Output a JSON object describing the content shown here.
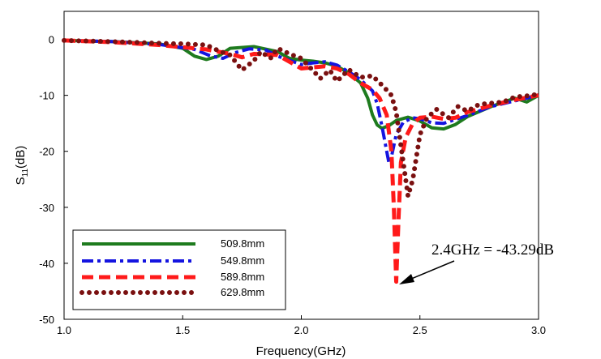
{
  "chart_data": {
    "type": "line",
    "xlabel": "Frequency(GHz)",
    "ylabel_main": "S",
    "ylabel_sub": "11",
    "ylabel_unit": "(dB)",
    "xlim": [
      1.0,
      3.0
    ],
    "ylim": [
      -50,
      5
    ],
    "xticks": [
      1.0,
      1.5,
      2.0,
      2.5,
      3.0
    ],
    "xtick_labels": [
      "1.0",
      "1.5",
      "2.0",
      "2.5",
      "3.0"
    ],
    "yticks": [
      0,
      -10,
      -20,
      -30,
      -40,
      -50
    ],
    "ytick_labels": [
      "0",
      "-10",
      "-20",
      "-30",
      "-40",
      "-50"
    ],
    "grid": false,
    "legend_position": "bottom-left",
    "annotation": {
      "text": "2.4GHz = -43.29dB",
      "x": 2.4,
      "y": -43.29
    },
    "series": [
      {
        "name": "509.8mm",
        "color": "#1e7b1e",
        "dash": "solid",
        "points": [
          [
            1.0,
            -0.2
          ],
          [
            1.2,
            -0.4
          ],
          [
            1.4,
            -0.8
          ],
          [
            1.5,
            -1.6
          ],
          [
            1.55,
            -3.0
          ],
          [
            1.6,
            -3.6
          ],
          [
            1.65,
            -3.0
          ],
          [
            1.7,
            -1.6
          ],
          [
            1.8,
            -1.3
          ],
          [
            1.9,
            -2.2
          ],
          [
            1.95,
            -3.4
          ],
          [
            2.0,
            -3.7
          ],
          [
            2.05,
            -3.9
          ],
          [
            2.1,
            -4.2
          ],
          [
            2.15,
            -4.8
          ],
          [
            2.2,
            -6.0
          ],
          [
            2.25,
            -7.8
          ],
          [
            2.28,
            -10.5
          ],
          [
            2.3,
            -13.5
          ],
          [
            2.32,
            -15.3
          ],
          [
            2.34,
            -15.9
          ],
          [
            2.37,
            -15.4
          ],
          [
            2.4,
            -14.5
          ],
          [
            2.45,
            -13.9
          ],
          [
            2.5,
            -14.6
          ],
          [
            2.55,
            -15.8
          ],
          [
            2.6,
            -16.0
          ],
          [
            2.65,
            -15.2
          ],
          [
            2.7,
            -13.8
          ],
          [
            2.8,
            -12.0
          ],
          [
            2.9,
            -10.5
          ],
          [
            2.95,
            -11.2
          ],
          [
            3.0,
            -10.0
          ]
        ]
      },
      {
        "name": "549.8mm",
        "color": "#1414e0",
        "dash": "dashdot",
        "points": [
          [
            1.0,
            -0.2
          ],
          [
            1.2,
            -0.4
          ],
          [
            1.4,
            -0.9
          ],
          [
            1.55,
            -1.8
          ],
          [
            1.62,
            -3.0
          ],
          [
            1.67,
            -3.4
          ],
          [
            1.72,
            -2.4
          ],
          [
            1.78,
            -1.7
          ],
          [
            1.85,
            -1.9
          ],
          [
            1.9,
            -3.0
          ],
          [
            2.0,
            -4.5
          ],
          [
            2.05,
            -4.2
          ],
          [
            2.1,
            -4.0
          ],
          [
            2.15,
            -4.6
          ],
          [
            2.2,
            -5.8
          ],
          [
            2.25,
            -7.2
          ],
          [
            2.3,
            -9.2
          ],
          [
            2.32,
            -11.5
          ],
          [
            2.34,
            -15.5
          ],
          [
            2.36,
            -20.0
          ],
          [
            2.37,
            -22.2
          ],
          [
            2.38,
            -21.0
          ],
          [
            2.4,
            -17.0
          ],
          [
            2.43,
            -14.8
          ],
          [
            2.47,
            -14.0
          ],
          [
            2.5,
            -14.2
          ],
          [
            2.55,
            -14.9
          ],
          [
            2.6,
            -15.0
          ],
          [
            2.7,
            -13.6
          ],
          [
            2.8,
            -12.0
          ],
          [
            2.9,
            -11.0
          ],
          [
            3.0,
            -10.0
          ]
        ]
      },
      {
        "name": "589.8mm",
        "color": "#ff1a1a",
        "dash": "dashed",
        "points": [
          [
            1.0,
            -0.2
          ],
          [
            1.2,
            -0.5
          ],
          [
            1.4,
            -1.0
          ],
          [
            1.6,
            -1.8
          ],
          [
            1.7,
            -2.6
          ],
          [
            1.75,
            -3.2
          ],
          [
            1.8,
            -2.6
          ],
          [
            1.9,
            -2.8
          ],
          [
            1.95,
            -4.0
          ],
          [
            2.0,
            -5.2
          ],
          [
            2.05,
            -5.0
          ],
          [
            2.1,
            -4.8
          ],
          [
            2.15,
            -5.2
          ],
          [
            2.2,
            -6.2
          ],
          [
            2.25,
            -7.8
          ],
          [
            2.3,
            -9.0
          ],
          [
            2.33,
            -10.5
          ],
          [
            2.36,
            -13.5
          ],
          [
            2.38,
            -20.0
          ],
          [
            2.39,
            -30.0
          ],
          [
            2.4,
            -43.29
          ],
          [
            2.41,
            -32.0
          ],
          [
            2.42,
            -22.0
          ],
          [
            2.44,
            -17.5
          ],
          [
            2.47,
            -15.0
          ],
          [
            2.5,
            -14.0
          ],
          [
            2.55,
            -13.8
          ],
          [
            2.6,
            -14.2
          ],
          [
            2.65,
            -14.0
          ],
          [
            2.7,
            -13.0
          ],
          [
            2.8,
            -11.8
          ],
          [
            2.9,
            -10.8
          ],
          [
            3.0,
            -10.0
          ]
        ]
      },
      {
        "name": "629.8mm",
        "color": "#7a1010",
        "dash": "dotted",
        "points": [
          [
            1.0,
            -0.2
          ],
          [
            1.2,
            -0.4
          ],
          [
            1.4,
            -0.7
          ],
          [
            1.5,
            -0.8
          ],
          [
            1.6,
            -1.0
          ],
          [
            1.65,
            -2.0
          ],
          [
            1.7,
            -2.8
          ],
          [
            1.75,
            -5.5
          ],
          [
            1.8,
            -3.8
          ],
          [
            1.83,
            -2.2
          ],
          [
            1.87,
            -3.4
          ],
          [
            1.9,
            -1.6
          ],
          [
            1.95,
            -2.6
          ],
          [
            2.0,
            -3.4
          ],
          [
            2.05,
            -5.6
          ],
          [
            2.08,
            -7.0
          ],
          [
            2.12,
            -5.5
          ],
          [
            2.15,
            -7.5
          ],
          [
            2.2,
            -5.4
          ],
          [
            2.25,
            -6.8
          ],
          [
            2.3,
            -6.5
          ],
          [
            2.35,
            -8.6
          ],
          [
            2.38,
            -10.0
          ],
          [
            2.4,
            -13.0
          ],
          [
            2.42,
            -19.0
          ],
          [
            2.44,
            -25.0
          ],
          [
            2.45,
            -28.0
          ],
          [
            2.47,
            -25.0
          ],
          [
            2.5,
            -17.0
          ],
          [
            2.53,
            -14.0
          ],
          [
            2.57,
            -12.5
          ],
          [
            2.62,
            -14.0
          ],
          [
            2.66,
            -12.0
          ],
          [
            2.7,
            -12.8
          ],
          [
            2.75,
            -11.6
          ],
          [
            2.8,
            -11.4
          ],
          [
            2.85,
            -11.2
          ],
          [
            2.9,
            -10.3
          ],
          [
            2.95,
            -10.1
          ],
          [
            3.0,
            -9.8
          ]
        ]
      }
    ]
  }
}
